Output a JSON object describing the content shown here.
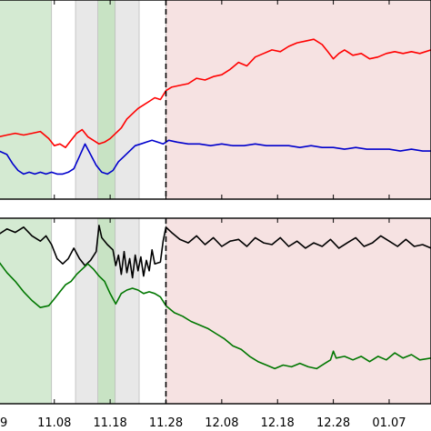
{
  "chart_data": [
    {
      "type": "line",
      "panel": "top",
      "x_ticks": [
        "11.08",
        "11.18",
        "11.28",
        "12.08",
        "12.18",
        "12.28",
        "01.07"
      ],
      "x_ticks_first_partial": "9",
      "xlim_day_index": [
        -9.9,
        67.5
      ],
      "ylim": [
        0,
        1
      ],
      "grid": false,
      "legend": "none",
      "event_line_x": "11.28",
      "shaded_regions": [
        {
          "from_day": -9.9,
          "to_day": -0.5,
          "color": "#d4ead2"
        },
        {
          "from_day": 3.8,
          "to_day": 15.2,
          "color": "#e8e8e8"
        },
        {
          "from_day": 7.8,
          "to_day": 10.9,
          "color": "#c8e3c4"
        },
        {
          "from_day": 20.0,
          "to_day": 67.5,
          "color": "#f6e2e2"
        }
      ],
      "series": [
        {
          "color": "#ff0000",
          "points": [
            [
              -9.9,
              0.29
            ],
            [
              -8.5,
              0.3
            ],
            [
              -7.0,
              0.31
            ],
            [
              -5.5,
              0.3
            ],
            [
              -4.0,
              0.31
            ],
            [
              -2.5,
              0.32
            ],
            [
              -1.0,
              0.28
            ],
            [
              0.0,
              0.24
            ],
            [
              1.0,
              0.25
            ],
            [
              2.0,
              0.23
            ],
            [
              3.0,
              0.27
            ],
            [
              4.0,
              0.31
            ],
            [
              5.0,
              0.33
            ],
            [
              6.0,
              0.29
            ],
            [
              7.0,
              0.27
            ],
            [
              8.0,
              0.25
            ],
            [
              9.0,
              0.26
            ],
            [
              10.0,
              0.28
            ],
            [
              11.0,
              0.31
            ],
            [
              12.0,
              0.34
            ],
            [
              13.0,
              0.39
            ],
            [
              14.0,
              0.42
            ],
            [
              15.0,
              0.45
            ],
            [
              16.0,
              0.47
            ],
            [
              17.0,
              0.49
            ],
            [
              18.0,
              0.51
            ],
            [
              19.0,
              0.5
            ],
            [
              20.0,
              0.55
            ],
            [
              21.0,
              0.57
            ],
            [
              22.5,
              0.58
            ],
            [
              24.0,
              0.59
            ],
            [
              25.5,
              0.62
            ],
            [
              27.0,
              0.61
            ],
            [
              28.5,
              0.63
            ],
            [
              30.0,
              0.64
            ],
            [
              31.5,
              0.67
            ],
            [
              33.0,
              0.71
            ],
            [
              34.5,
              0.69
            ],
            [
              36.0,
              0.74
            ],
            [
              37.5,
              0.76
            ],
            [
              39.0,
              0.78
            ],
            [
              40.5,
              0.77
            ],
            [
              42.0,
              0.8
            ],
            [
              43.5,
              0.82
            ],
            [
              45.0,
              0.83
            ],
            [
              46.5,
              0.84
            ],
            [
              48.0,
              0.81
            ],
            [
              49.0,
              0.77
            ],
            [
              50.0,
              0.73
            ],
            [
              51.0,
              0.76
            ],
            [
              52.0,
              0.78
            ],
            [
              53.5,
              0.75
            ],
            [
              55.0,
              0.76
            ],
            [
              56.5,
              0.73
            ],
            [
              58.0,
              0.74
            ],
            [
              59.5,
              0.76
            ],
            [
              61.0,
              0.77
            ],
            [
              62.5,
              0.76
            ],
            [
              64.0,
              0.77
            ],
            [
              65.5,
              0.76
            ],
            [
              67.5,
              0.78
            ]
          ]
        },
        {
          "color": "#0000cc",
          "points": [
            [
              -9.9,
              0.21
            ],
            [
              -8.5,
              0.19
            ],
            [
              -7.5,
              0.14
            ],
            [
              -6.5,
              0.1
            ],
            [
              -5.5,
              0.08
            ],
            [
              -4.5,
              0.09
            ],
            [
              -3.5,
              0.08
            ],
            [
              -2.5,
              0.09
            ],
            [
              -1.5,
              0.08
            ],
            [
              -0.5,
              0.09
            ],
            [
              0.5,
              0.08
            ],
            [
              1.5,
              0.08
            ],
            [
              2.5,
              0.09
            ],
            [
              3.5,
              0.11
            ],
            [
              4.5,
              0.18
            ],
            [
              5.5,
              0.25
            ],
            [
              6.5,
              0.19
            ],
            [
              7.5,
              0.13
            ],
            [
              8.5,
              0.09
            ],
            [
              9.5,
              0.08
            ],
            [
              10.5,
              0.1
            ],
            [
              11.5,
              0.15
            ],
            [
              12.5,
              0.18
            ],
            [
              13.5,
              0.21
            ],
            [
              14.5,
              0.24
            ],
            [
              15.5,
              0.25
            ],
            [
              16.5,
              0.26
            ],
            [
              17.5,
              0.27
            ],
            [
              18.5,
              0.26
            ],
            [
              19.5,
              0.25
            ],
            [
              20.5,
              0.27
            ],
            [
              22.0,
              0.26
            ],
            [
              24.0,
              0.25
            ],
            [
              26.0,
              0.25
            ],
            [
              28.0,
              0.24
            ],
            [
              30.0,
              0.25
            ],
            [
              32.0,
              0.24
            ],
            [
              34.0,
              0.24
            ],
            [
              36.0,
              0.25
            ],
            [
              38.0,
              0.24
            ],
            [
              40.0,
              0.24
            ],
            [
              42.0,
              0.24
            ],
            [
              44.0,
              0.23
            ],
            [
              46.0,
              0.24
            ],
            [
              48.0,
              0.23
            ],
            [
              50.0,
              0.23
            ],
            [
              52.0,
              0.22
            ],
            [
              54.0,
              0.23
            ],
            [
              56.0,
              0.22
            ],
            [
              58.0,
              0.22
            ],
            [
              60.0,
              0.22
            ],
            [
              62.0,
              0.21
            ],
            [
              64.0,
              0.22
            ],
            [
              66.0,
              0.21
            ],
            [
              67.5,
              0.21
            ]
          ]
        }
      ]
    },
    {
      "type": "line",
      "panel": "bottom",
      "x_ticks": [
        "11.08",
        "11.18",
        "11.28",
        "12.08",
        "12.18",
        "12.28",
        "01.07"
      ],
      "x_ticks_first_partial": "9",
      "xlim_day_index": [
        -9.9,
        67.5
      ],
      "ylim": [
        0,
        1
      ],
      "grid": false,
      "legend": "none",
      "event_line_x": "11.28",
      "shaded_regions": [
        {
          "from_day": -9.9,
          "to_day": -0.5,
          "color": "#d4ead2"
        },
        {
          "from_day": 3.8,
          "to_day": 15.2,
          "color": "#e8e8e8"
        },
        {
          "from_day": 7.8,
          "to_day": 10.9,
          "color": "#c8e3c4"
        },
        {
          "from_day": 20.0,
          "to_day": 67.5,
          "color": "#f6e2e2"
        }
      ],
      "series": [
        {
          "color": "#000000",
          "points": [
            [
              -9.9,
              0.94
            ],
            [
              -8.5,
              0.97
            ],
            [
              -7.0,
              0.95
            ],
            [
              -5.5,
              0.98
            ],
            [
              -4.0,
              0.93
            ],
            [
              -2.5,
              0.9
            ],
            [
              -1.5,
              0.93
            ],
            [
              -0.5,
              0.88
            ],
            [
              0.5,
              0.8
            ],
            [
              1.5,
              0.77
            ],
            [
              2.5,
              0.8
            ],
            [
              3.5,
              0.86
            ],
            [
              4.5,
              0.8
            ],
            [
              5.5,
              0.76
            ],
            [
              6.5,
              0.79
            ],
            [
              7.5,
              0.84
            ],
            [
              8.0,
              0.99
            ],
            [
              8.5,
              0.92
            ],
            [
              9.5,
              0.88
            ],
            [
              10.5,
              0.85
            ],
            [
              11.0,
              0.76
            ],
            [
              11.5,
              0.82
            ],
            [
              12.0,
              0.71
            ],
            [
              12.5,
              0.84
            ],
            [
              13.0,
              0.72
            ],
            [
              13.5,
              0.8
            ],
            [
              14.0,
              0.69
            ],
            [
              14.5,
              0.82
            ],
            [
              15.0,
              0.73
            ],
            [
              15.5,
              0.81
            ],
            [
              16.0,
              0.7
            ],
            [
              16.5,
              0.79
            ],
            [
              17.0,
              0.73
            ],
            [
              17.5,
              0.85
            ],
            [
              18.0,
              0.77
            ],
            [
              19.0,
              0.78
            ],
            [
              19.5,
              0.9
            ],
            [
              20.0,
              0.98
            ],
            [
              21.0,
              0.95
            ],
            [
              22.5,
              0.91
            ],
            [
              24.0,
              0.89
            ],
            [
              25.5,
              0.93
            ],
            [
              27.0,
              0.88
            ],
            [
              28.5,
              0.92
            ],
            [
              30.0,
              0.87
            ],
            [
              31.5,
              0.9
            ],
            [
              33.0,
              0.91
            ],
            [
              34.5,
              0.87
            ],
            [
              36.0,
              0.92
            ],
            [
              37.5,
              0.89
            ],
            [
              39.0,
              0.88
            ],
            [
              40.5,
              0.92
            ],
            [
              42.0,
              0.87
            ],
            [
              43.5,
              0.9
            ],
            [
              45.0,
              0.86
            ],
            [
              46.5,
              0.89
            ],
            [
              48.0,
              0.87
            ],
            [
              49.5,
              0.91
            ],
            [
              51.0,
              0.86
            ],
            [
              52.5,
              0.89
            ],
            [
              54.0,
              0.92
            ],
            [
              55.5,
              0.87
            ],
            [
              57.0,
              0.89
            ],
            [
              58.5,
              0.93
            ],
            [
              60.0,
              0.9
            ],
            [
              61.5,
              0.87
            ],
            [
              63.0,
              0.91
            ],
            [
              64.5,
              0.87
            ],
            [
              66.0,
              0.88
            ],
            [
              67.5,
              0.86
            ]
          ]
        },
        {
          "color": "#007700",
          "points": [
            [
              -9.9,
              0.78
            ],
            [
              -8.5,
              0.72
            ],
            [
              -7.0,
              0.67
            ],
            [
              -5.5,
              0.61
            ],
            [
              -4.0,
              0.56
            ],
            [
              -2.5,
              0.52
            ],
            [
              -1.0,
              0.53
            ],
            [
              0.0,
              0.57
            ],
            [
              1.0,
              0.61
            ],
            [
              2.0,
              0.65
            ],
            [
              3.0,
              0.67
            ],
            [
              4.0,
              0.71
            ],
            [
              5.0,
              0.74
            ],
            [
              6.0,
              0.77
            ],
            [
              7.0,
              0.74
            ],
            [
              8.0,
              0.7
            ],
            [
              9.0,
              0.67
            ],
            [
              10.0,
              0.6
            ],
            [
              11.0,
              0.54
            ],
            [
              12.0,
              0.6
            ],
            [
              13.0,
              0.62
            ],
            [
              14.0,
              0.63
            ],
            [
              15.0,
              0.62
            ],
            [
              16.0,
              0.6
            ],
            [
              17.0,
              0.61
            ],
            [
              18.0,
              0.6
            ],
            [
              19.0,
              0.58
            ],
            [
              20.0,
              0.53
            ],
            [
              21.5,
              0.49
            ],
            [
              23.0,
              0.47
            ],
            [
              24.5,
              0.44
            ],
            [
              26.0,
              0.42
            ],
            [
              27.5,
              0.4
            ],
            [
              29.0,
              0.37
            ],
            [
              30.5,
              0.34
            ],
            [
              32.0,
              0.3
            ],
            [
              33.5,
              0.28
            ],
            [
              35.0,
              0.24
            ],
            [
              36.5,
              0.21
            ],
            [
              38.0,
              0.19
            ],
            [
              39.5,
              0.17
            ],
            [
              41.0,
              0.19
            ],
            [
              42.5,
              0.18
            ],
            [
              44.0,
              0.2
            ],
            [
              45.5,
              0.18
            ],
            [
              47.0,
              0.17
            ],
            [
              48.5,
              0.2
            ],
            [
              49.5,
              0.22
            ],
            [
              50.0,
              0.27
            ],
            [
              50.5,
              0.23
            ],
            [
              52.0,
              0.24
            ],
            [
              53.5,
              0.22
            ],
            [
              55.0,
              0.24
            ],
            [
              56.5,
              0.21
            ],
            [
              58.0,
              0.24
            ],
            [
              59.5,
              0.22
            ],
            [
              61.0,
              0.26
            ],
            [
              62.5,
              0.23
            ],
            [
              64.0,
              0.25
            ],
            [
              65.5,
              0.22
            ],
            [
              67.5,
              0.23
            ]
          ]
        }
      ]
    }
  ]
}
